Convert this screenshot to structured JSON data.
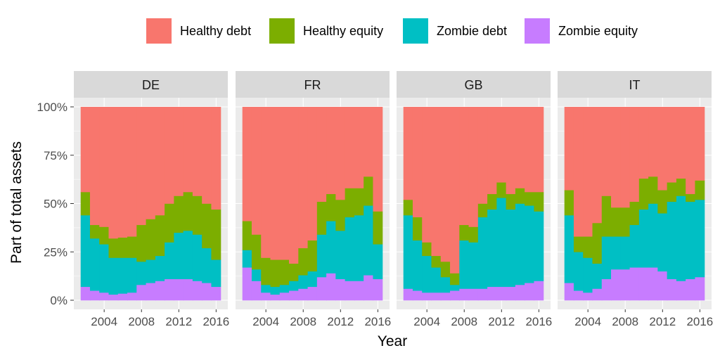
{
  "legend": [
    {
      "name": "Healthy debt",
      "color": "#F8766D"
    },
    {
      "name": "Healthy equity",
      "color": "#7CAE00"
    },
    {
      "name": "Zombie debt",
      "color": "#00BFC4"
    },
    {
      "name": "Zombie equity",
      "color": "#C77CFF"
    }
  ],
  "chart_data": {
    "type": "area",
    "xlabel": "Year",
    "ylabel": "Part of total assets",
    "ylim": [
      0,
      100
    ],
    "y_ticks": [
      "0%",
      "25%",
      "50%",
      "75%",
      "100%"
    ],
    "y_tick_values": [
      0,
      25,
      50,
      75,
      100
    ],
    "x_ticks": [
      "2004",
      "2008",
      "2012",
      "2016"
    ],
    "x_tick_values": [
      2004,
      2008,
      2012,
      2016
    ],
    "xlim": [
      2001.5,
      2016.5
    ],
    "legend_position": "top",
    "grid": true,
    "stacking": "stacked step, percentage of total",
    "series_order": [
      "Zombie equity",
      "Zombie debt",
      "Healthy equity",
      "Healthy debt"
    ],
    "facets": [
      {
        "panel": "DE",
        "years": [
          2002,
          2003,
          2004,
          2005,
          2006,
          2007,
          2008,
          2009,
          2010,
          2011,
          2012,
          2013,
          2014,
          2015,
          2016
        ],
        "series": [
          {
            "name": "Zombie equity",
            "values": [
              7,
              5,
              4,
              3,
              3.5,
              4,
              8,
              9,
              10,
              11,
              11,
              11,
              10,
              9,
              7
            ]
          },
          {
            "name": "Zombie debt",
            "values": [
              37,
              27,
              25,
              19,
              18.5,
              18,
              12,
              12,
              13,
              19,
              24,
              25,
              24,
              18,
              14
            ]
          },
          {
            "name": "Healthy equity",
            "values": [
              12,
              7,
              9,
              10,
              10.5,
              11,
              19,
              21,
              21,
              20,
              19,
              20,
              20,
              23,
              26
            ]
          },
          {
            "name": "Healthy debt",
            "values": [
              44,
              61,
              62,
              68,
              67.5,
              67,
              61,
              58,
              56,
              50,
              46,
              44,
              46,
              50,
              53
            ]
          }
        ]
      },
      {
        "panel": "FR",
        "years": [
          2002,
          2003,
          2004,
          2005,
          2006,
          2007,
          2008,
          2009,
          2010,
          2011,
          2012,
          2013,
          2014,
          2015,
          2016
        ],
        "series": [
          {
            "name": "Zombie equity",
            "values": [
              17,
              10,
              4,
              3,
              4,
              5,
              6,
              7,
              12,
              14,
              11,
              10,
              10,
              13,
              11
            ]
          },
          {
            "name": "Zombie debt",
            "values": [
              9,
              6,
              4,
              4,
              4,
              5,
              7,
              8,
              22,
              27,
              25,
              33,
              34,
              36,
              18
            ]
          },
          {
            "name": "Healthy equity",
            "values": [
              15,
              18,
              14,
              14,
              13,
              9,
              14,
              16,
              17,
              14,
              16,
              15,
              14,
              15,
              17
            ]
          },
          {
            "name": "Healthy debt",
            "values": [
              59,
              66,
              78,
              79,
              79,
              81,
              73,
              69,
              49,
              45,
              48,
              42,
              42,
              36,
              54
            ]
          }
        ]
      },
      {
        "panel": "GB",
        "years": [
          2002,
          2003,
          2004,
          2005,
          2006,
          2007,
          2008,
          2009,
          2010,
          2011,
          2012,
          2013,
          2014,
          2015,
          2016
        ],
        "series": [
          {
            "name": "Zombie equity",
            "values": [
              6,
              5,
              4,
              4,
              4,
              5,
              6,
              6,
              6,
              7,
              7,
              7,
              8,
              9,
              10
            ]
          },
          {
            "name": "Zombie debt",
            "values": [
              38,
              26,
              19,
              13,
              8,
              3,
              25,
              24,
              37,
              40,
              46,
              40,
              42,
              40,
              36
            ]
          },
          {
            "name": "Healthy equity",
            "values": [
              8,
              12,
              7,
              6,
              8,
              6,
              8,
              8,
              7,
              8,
              8,
              8,
              8,
              7,
              10
            ]
          },
          {
            "name": "Healthy debt",
            "values": [
              48,
              57,
              70,
              77,
              80,
              86,
              61,
              62,
              50,
              45,
              39,
              45,
              42,
              44,
              44
            ]
          }
        ]
      },
      {
        "panel": "IT",
        "years": [
          2002,
          2003,
          2004,
          2005,
          2006,
          2007,
          2008,
          2009,
          2010,
          2011,
          2012,
          2013,
          2014,
          2015,
          2016
        ],
        "series": [
          {
            "name": "Zombie equity",
            "values": [
              9,
              5,
              4,
              6,
              11,
              16,
              16,
              17,
              17,
              17,
              15,
              11,
              10,
              11,
              12
            ]
          },
          {
            "name": "Zombie debt",
            "values": [
              35,
              20,
              18,
              13,
              22,
              17,
              17,
              22,
              30,
              33,
              30,
              40,
              44,
              40,
              40
            ]
          },
          {
            "name": "Healthy equity",
            "values": [
              13,
              8,
              11,
              21,
              21,
              15,
              15,
              12,
              16,
              14,
              12,
              10,
              9,
              4,
              10
            ]
          },
          {
            "name": "Healthy debt",
            "values": [
              43,
              67,
              67,
              60,
              46,
              52,
              52,
              49,
              37,
              36,
              43,
              39,
              37,
              45,
              38
            ]
          }
        ]
      }
    ]
  }
}
